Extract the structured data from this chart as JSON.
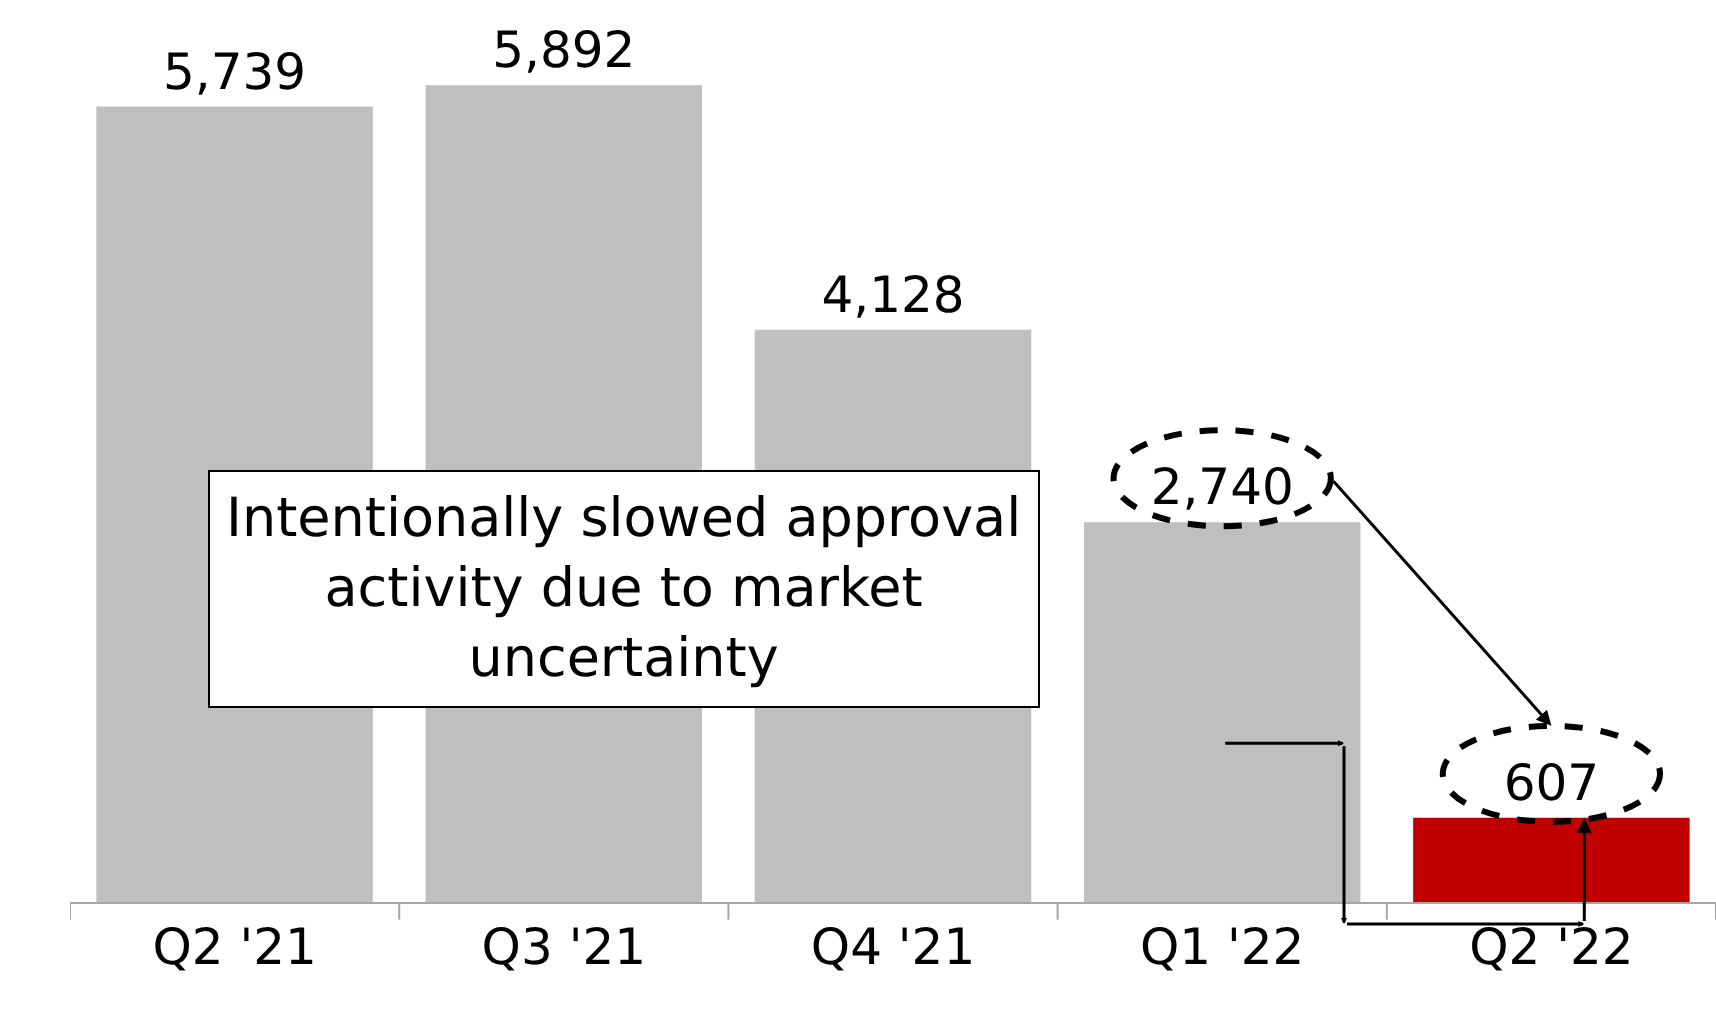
{
  "chart_data": {
    "type": "bar",
    "categories": [
      "Q2 '21",
      "Q3 '21",
      "Q4 '21",
      "Q1 '22",
      "Q2 '22"
    ],
    "values": [
      5739,
      5892,
      4128,
      2740,
      607
    ],
    "colors": [
      "#bfbfbf",
      "#bfbfbf",
      "#bfbfbf",
      "#bfbfbf",
      "#c00000"
    ],
    "value_labels": [
      "5,739",
      "5,892",
      "4,128",
      "2,740",
      "607"
    ],
    "annotations": [
      "Intentionally slowed approval\nactivity due to market\nuncertainty"
    ],
    "legend": false
  }
}
